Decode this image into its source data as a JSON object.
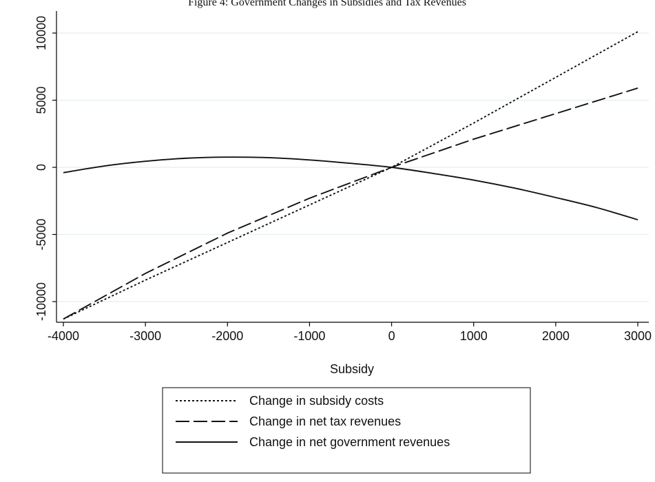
{
  "caption": "Figure 4: Government Changes in Subsidies and Tax Revenues",
  "chart_data": {
    "type": "line",
    "title": "",
    "xlabel": "Subsidy",
    "ylabel": "",
    "xlim": [
      -4000,
      3000
    ],
    "ylim": [
      -11500,
      10500
    ],
    "x_ticks": [
      -4000,
      -3000,
      -2000,
      -1000,
      0,
      1000,
      2000,
      3000
    ],
    "y_ticks": [
      -10000,
      -5000,
      0,
      5000,
      10000
    ],
    "x_tick_labels": [
      "-4000",
      "-3000",
      "-2000",
      "-1000",
      "0",
      "1000",
      "2000",
      "3000"
    ],
    "y_tick_labels": [
      "-10000",
      "-5000",
      "0",
      "5000",
      "10000"
    ],
    "grid": "horizontal",
    "legend_position": "bottom-center",
    "series": [
      {
        "name": "Change in subsidy costs",
        "style": "dotted",
        "x": [
          -4000,
          -3000,
          -2000,
          -1000,
          0,
          1000,
          2000,
          3000
        ],
        "y": [
          -11300,
          -8400,
          -5600,
          -2800,
          0,
          3300,
          6700,
          10100
        ]
      },
      {
        "name": "Change in net tax revenues",
        "style": "long-dash",
        "x": [
          -4000,
          -3000,
          -2000,
          -1000,
          0,
          1000,
          2000,
          3000
        ],
        "y": [
          -11300,
          -7900,
          -4900,
          -2300,
          0,
          2100,
          4000,
          5900
        ]
      },
      {
        "name": "Change in net government revenues",
        "style": "solid",
        "x": [
          -4000,
          -3500,
          -3000,
          -2500,
          -2000,
          -1500,
          -1000,
          -500,
          0,
          500,
          1000,
          1500,
          2000,
          2500,
          3000
        ],
        "y": [
          -400,
          100,
          450,
          680,
          760,
          720,
          550,
          300,
          0,
          -450,
          -950,
          -1550,
          -2250,
          -3000,
          -3900
        ]
      }
    ]
  }
}
